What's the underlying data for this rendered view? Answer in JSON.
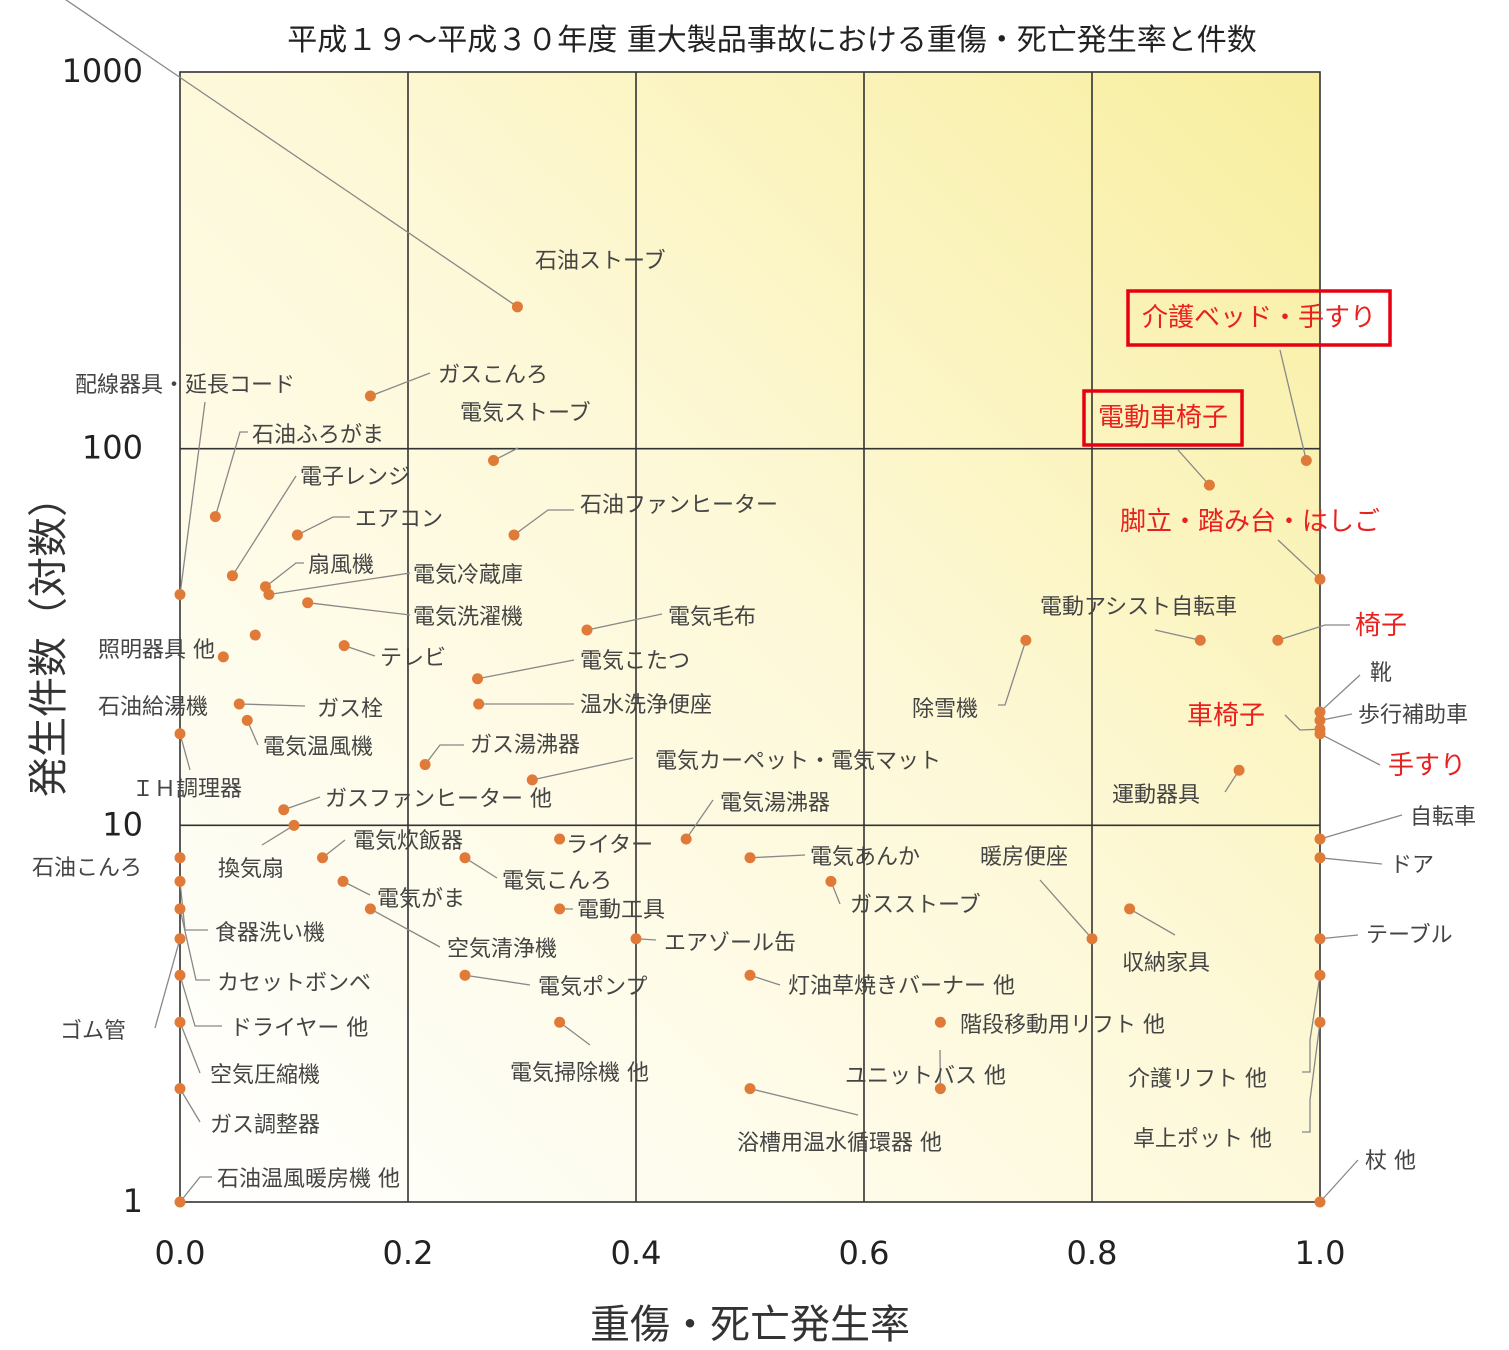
{
  "chart_data": {
    "type": "scatter",
    "title": "平成１９～平成３０年度 重大製品事故における重傷・死亡発生率と件数",
    "xlabel": "重傷・死亡発生率",
    "ylabel": "発生件数（対数）",
    "xlim": [
      0.0,
      1.0
    ],
    "ylim": [
      1,
      1000
    ],
    "yscale": "log",
    "grid": true,
    "x_ticks": [
      "0.0",
      "0.2",
      "0.4",
      "0.6",
      "0.8",
      "1.0"
    ],
    "y_ticks": [
      "1000",
      "100",
      "10",
      "1"
    ],
    "colors": {
      "point": "#e07a38",
      "highlight": "#e8211f",
      "bg_light": "#ffffff",
      "bg_warm": "#f9f0a6"
    },
    "points": [
      {
        "label": "石油ストーブ",
        "x": 0.296,
        "y": 238,
        "hl": false
      },
      {
        "label": "ガスこんろ",
        "x": 0.167,
        "y": 138,
        "hl": false
      },
      {
        "label": "配線器具・延長コード",
        "x": 0.0,
        "y": 41,
        "hl": false
      },
      {
        "label": "電気ストーブ",
        "x": 0.275,
        "y": 93,
        "hl": false
      },
      {
        "label": "石油ふろがま",
        "x": 0.031,
        "y": 66,
        "hl": false
      },
      {
        "label": "電子レンジ",
        "x": 0.046,
        "y": 46,
        "hl": false
      },
      {
        "label": "エアコン",
        "x": 0.103,
        "y": 59,
        "hl": false
      },
      {
        "label": "扇風機",
        "x": 0.075,
        "y": 43,
        "hl": false
      },
      {
        "label": "電気冷蔵庫",
        "x": 0.078,
        "y": 41,
        "hl": false
      },
      {
        "label": "電気洗濯機",
        "x": 0.112,
        "y": 39,
        "hl": false
      },
      {
        "label": "石油ファンヒーター",
        "x": 0.293,
        "y": 59,
        "hl": false
      },
      {
        "label": "照明器具 他",
        "x": 0.066,
        "y": 32,
        "hl": false
      },
      {
        "label": "テレビ",
        "x": 0.144,
        "y": 30,
        "hl": false
      },
      {
        "label": "電気毛布",
        "x": 0.357,
        "y": 33,
        "hl": false
      },
      {
        "label": "石油給湯機",
        "x": 0.038,
        "y": 28,
        "hl": false
      },
      {
        "label": "電気こたつ",
        "x": 0.261,
        "y": 24.5,
        "hl": false
      },
      {
        "label": "ガス栓",
        "x": 0.052,
        "y": 21,
        "hl": false
      },
      {
        "label": "温水洗浄便座",
        "x": 0.262,
        "y": 21,
        "hl": false
      },
      {
        "label": "電気温風機",
        "x": 0.059,
        "y": 19,
        "hl": false
      },
      {
        "label": "ガス湯沸器",
        "x": 0.215,
        "y": 14.5,
        "hl": false
      },
      {
        "label": "ＩＨ調理器",
        "x": 0.0,
        "y": 17.5,
        "hl": false
      },
      {
        "label": "電気カーペット・電気マット",
        "x": 0.309,
        "y": 13.2,
        "hl": false
      },
      {
        "label": "ガスファンヒーター 他",
        "x": 0.091,
        "y": 11,
        "hl": false
      },
      {
        "label": "換気扇",
        "x": 0.1,
        "y": 10,
        "hl": false
      },
      {
        "label": "電気湯沸器",
        "x": 0.444,
        "y": 9.2,
        "hl": false
      },
      {
        "label": "ライター",
        "x": 0.333,
        "y": 9.2,
        "hl": false
      },
      {
        "label": "電気炊飯器",
        "x": 0.125,
        "y": 8.2,
        "hl": false
      },
      {
        "label": "石油こんろ",
        "x": 0.0,
        "y": 8.2,
        "hl": false
      },
      {
        "label": "電気こんろ",
        "x": 0.25,
        "y": 8.2,
        "hl": false
      },
      {
        "label": "電気あんか",
        "x": 0.5,
        "y": 8.2,
        "hl": false
      },
      {
        "label": "電気がま",
        "x": 0.143,
        "y": 7.1,
        "hl": false
      },
      {
        "label": "食器洗い機",
        "x": 0.0,
        "y": 7.1,
        "hl": false
      },
      {
        "label": "ガスストーブ",
        "x": 0.571,
        "y": 7.1,
        "hl": false
      },
      {
        "label": "空気清浄機",
        "x": 0.167,
        "y": 6.0,
        "hl": false
      },
      {
        "label": "電動工具",
        "x": 0.333,
        "y": 6.0,
        "hl": false
      },
      {
        "label": "暖房便座",
        "x": 0.8,
        "y": 5.0,
        "hl": false
      },
      {
        "label": "収納家具",
        "x": 0.833,
        "y": 6.0,
        "hl": false
      },
      {
        "label": "エアゾール缶",
        "x": 0.4,
        "y": 5.0,
        "hl": false
      },
      {
        "label": "カセットボンベ",
        "x": 0.0,
        "y": 6.0,
        "hl": false
      },
      {
        "label": "ゴム管",
        "x": 0.0,
        "y": 5.0,
        "hl": false
      },
      {
        "label": "電気ポンプ",
        "x": 0.25,
        "y": 4.0,
        "hl": false
      },
      {
        "label": "灯油草焼きバーナー 他",
        "x": 0.5,
        "y": 4.0,
        "hl": false
      },
      {
        "label": "ドライヤー 他",
        "x": 0.0,
        "y": 4.0,
        "hl": false
      },
      {
        "label": "電気掃除機 他",
        "x": 0.333,
        "y": 3.0,
        "hl": false
      },
      {
        "label": "階段移動用リフト 他",
        "x": 0.667,
        "y": 3.0,
        "hl": false
      },
      {
        "label": "空気圧縮機",
        "x": 0.0,
        "y": 3.0,
        "hl": false
      },
      {
        "label": "ガス調整器",
        "x": 0.0,
        "y": 2.0,
        "hl": false
      },
      {
        "label": "浴槽用温水循環器 他",
        "x": 0.5,
        "y": 2.0,
        "hl": false
      },
      {
        "label": "ユニットバス 他",
        "x": 0.667,
        "y": 2.0,
        "hl": false
      },
      {
        "label": "石油温風暖房機 他",
        "x": 0.0,
        "y": 1.0,
        "hl": false
      },
      {
        "label": "除雪機",
        "x": 0.742,
        "y": 31,
        "hl": false
      },
      {
        "label": "電動アシスト自転車",
        "x": 0.895,
        "y": 31,
        "hl": false
      },
      {
        "label": "運動器具",
        "x": 0.929,
        "y": 14,
        "hl": false
      },
      {
        "label": "介護ベッド・手すり",
        "x": 0.988,
        "y": 93,
        "hl": true
      },
      {
        "label": "電動車椅子",
        "x": 0.903,
        "y": 80,
        "hl": true
      },
      {
        "label": "脚立・踏み台・はしご",
        "x": 1.0,
        "y": 45,
        "hl": true
      },
      {
        "label": "椅子",
        "x": 0.963,
        "y": 31,
        "hl": true
      },
      {
        "label": "靴",
        "x": 1.0,
        "y": 20,
        "hl": false
      },
      {
        "label": "歩行補助車",
        "x": 1.0,
        "y": 19,
        "hl": false
      },
      {
        "label": "車椅子",
        "x": 1.0,
        "y": 18,
        "hl": true
      },
      {
        "label": "手すり",
        "x": 1.0,
        "y": 17.5,
        "hl": true
      },
      {
        "label": "自転車",
        "x": 1.0,
        "y": 9.2,
        "hl": false
      },
      {
        "label": "ドア",
        "x": 1.0,
        "y": 8.2,
        "hl": false
      },
      {
        "label": "テーブル",
        "x": 1.0,
        "y": 5.0,
        "hl": false
      },
      {
        "label": "介護リフト 他",
        "x": 1.0,
        "y": 4.0,
        "hl": false
      },
      {
        "label": "卓上ポット 他",
        "x": 1.0,
        "y": 3.0,
        "hl": false
      },
      {
        "label": "杖 他",
        "x": 1.0,
        "y": 1.0,
        "hl": false
      }
    ],
    "highlight_boxes": [
      "介護ベッド・手すり",
      "電動車椅子"
    ]
  }
}
